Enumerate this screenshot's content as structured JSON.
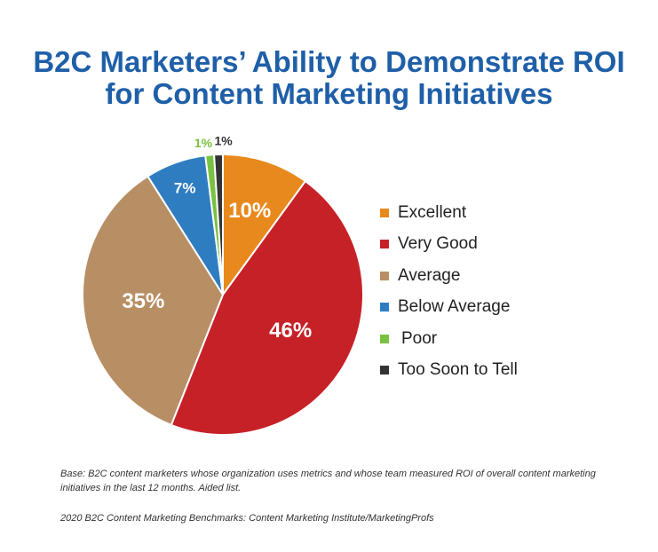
{
  "title_line1": "B2C Marketers’ Ability to Demonstrate ROI",
  "title_line2": "for Content Marketing Initiatives",
  "chart_data": {
    "type": "pie",
    "title": "B2C Marketers’ Ability to Demonstrate ROI for Content Marketing Initiatives",
    "categories": [
      "Excellent",
      "Very Good",
      "Average",
      "Below Average",
      "Poor",
      "Too Soon to Tell"
    ],
    "values": [
      10,
      46,
      35,
      7,
      1,
      1
    ],
    "labels": [
      "10%",
      "46%",
      "35%",
      "7%",
      "1%",
      "1%"
    ],
    "colors": [
      "#e8891d",
      "#c62127",
      "#b88f65",
      "#2f7dc1",
      "#7ac143",
      "#333333"
    ],
    "legend_position": "right"
  },
  "footnote_base": "Base: B2C content marketers whose organization uses metrics and whose team measured ROI of overall content marketing initiatives in the last 12 months. Aided list.",
  "footnote_source": "2020 B2C Content Marketing Benchmarks: Content Marketing Institute/MarketingProfs"
}
